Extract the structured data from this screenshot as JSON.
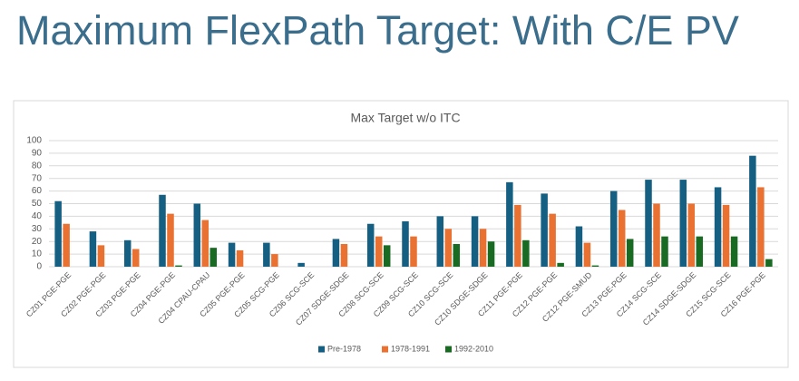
{
  "slide_title": "Maximum FlexPath Target: With C/E PV",
  "chart_data": {
    "type": "bar",
    "title": "Max Target w/o ITC",
    "categories": [
      "CZ01 PGE-PGE",
      "CZ02 PGE-PGE",
      "CZ03 PGE-PGE",
      "CZ04 PGE-PGE",
      "CZ04 CPAU-CPAU",
      "CZ05 PGE-PGE",
      "CZ05 SCG-PGE",
      "CZ06 SCG-SCE",
      "CZ07 SDGE-SDGE",
      "CZ08 SCG-SCE",
      "CZ09 SCG-SCE",
      "CZ10 SCG-SCE",
      "CZ10 SDGE-SDGE",
      "CZ11 PGE-PGE",
      "CZ12 PGE-PGE",
      "CZ12 PGE-SMUD",
      "CZ13 PGE-PGE",
      "CZ14 SCG-SCE",
      "CZ14 SDGE-SDGE",
      "CZ15 SCG-SCE",
      "CZ16 PGE-PGE"
    ],
    "series": [
      {
        "name": "Pre-1978",
        "color": "#156082",
        "values": [
          52,
          28,
          21,
          57,
          50,
          19,
          19,
          3,
          22,
          34,
          36,
          40,
          40,
          67,
          58,
          32,
          60,
          69,
          69,
          63,
          88
        ]
      },
      {
        "name": "1978-1991",
        "color": "#e97132",
        "values": [
          34,
          17,
          14,
          42,
          37,
          13,
          10,
          0,
          18,
          24,
          24,
          30,
          30,
          49,
          42,
          19,
          45,
          50,
          50,
          49,
          63
        ]
      },
      {
        "name": "1992-2010",
        "color": "#196b24",
        "values": [
          0,
          0,
          0,
          1,
          15,
          0,
          0,
          0,
          0,
          17,
          0,
          18,
          20,
          21,
          3,
          1,
          22,
          24,
          24,
          24,
          6
        ]
      }
    ],
    "ylim": [
      0,
      100
    ],
    "yticks": [
      0,
      10,
      20,
      30,
      40,
      50,
      60,
      70,
      80,
      90,
      100
    ],
    "grid": true,
    "legend": "bottom"
  }
}
